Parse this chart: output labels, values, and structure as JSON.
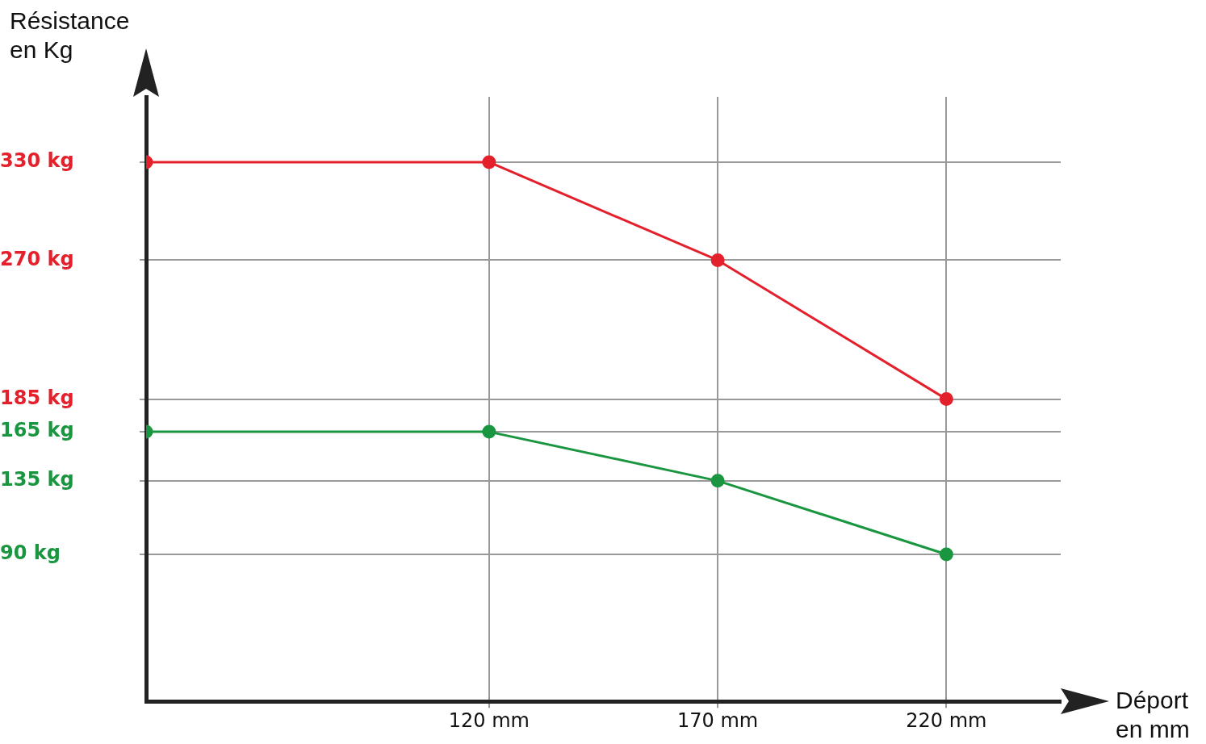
{
  "chart_data": {
    "type": "line",
    "ylabel": "Résistance en Kg",
    "xlabel": "Déport en mm",
    "x": [
      45,
      120,
      170,
      220
    ],
    "series": [
      {
        "color": "#e3202b",
        "values": [
          330,
          330,
          270,
          185
        ]
      },
      {
        "color": "#1a9640",
        "values": [
          165,
          165,
          135,
          90
        ]
      }
    ],
    "xlim": [
      45,
      245
    ],
    "xticks": [
      {
        "value": 120,
        "label": "120 mm"
      },
      {
        "value": 170,
        "label": "170 mm"
      },
      {
        "value": 220,
        "label": "220 mm"
      }
    ],
    "ylim": [
      0,
      370
    ],
    "yticks": [
      {
        "value": 90,
        "label": "90 kg"
      },
      {
        "value": 135,
        "label": "135 kg"
      },
      {
        "value": 165,
        "label": "165 kg"
      },
      {
        "value": 185,
        "label": "185 kg"
      },
      {
        "value": 270,
        "label": "270 kg"
      },
      {
        "value": 330,
        "label": "330 kg"
      }
    ],
    "grid": true,
    "marker": "circle",
    "line_style": "solid"
  }
}
